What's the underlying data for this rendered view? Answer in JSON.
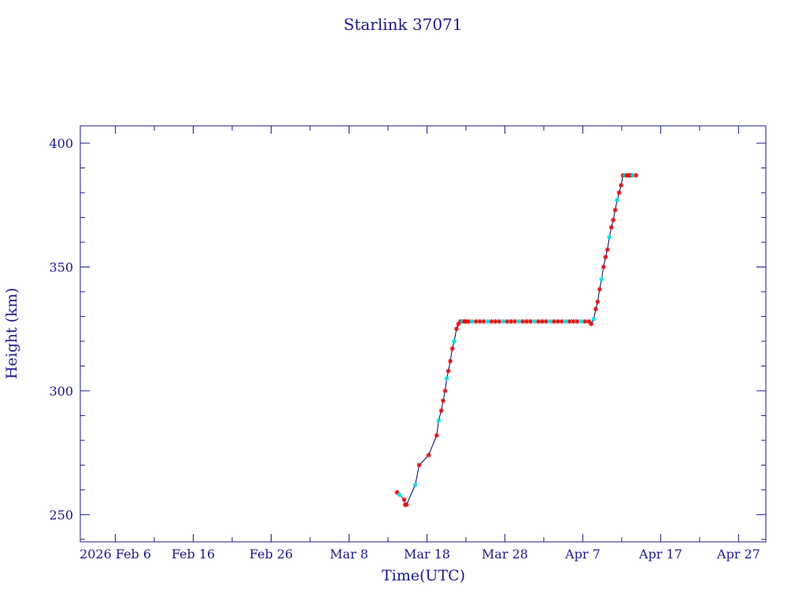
{
  "chart_data": {
    "type": "line",
    "title": "Starlink 37071",
    "xlabel": "Time(UTC)",
    "ylabel": "Height (km)",
    "x_ticks": [
      {
        "date": "2026-02-06",
        "label": "2026 Feb 6"
      },
      {
        "date": "2026-02-16",
        "label": "Feb 16"
      },
      {
        "date": "2026-02-26",
        "label": "Feb 26"
      },
      {
        "date": "2026-03-08",
        "label": "Mar  8"
      },
      {
        "date": "2026-03-18",
        "label": "Mar 18"
      },
      {
        "date": "2026-03-28",
        "label": "Mar 28"
      },
      {
        "date": "2026-04-07",
        "label": "Apr  7"
      },
      {
        "date": "2026-04-17",
        "label": "Apr 17"
      },
      {
        "date": "2026-04-27",
        "label": "Apr 27"
      }
    ],
    "y_ticks": [
      250,
      300,
      350,
      400
    ],
    "xlim": [
      "2026-02-01T12:00",
      "2026-04-30T12:00"
    ],
    "ylim": [
      239,
      407
    ],
    "grid": false,
    "colors": {
      "axis": "#1a1a8c",
      "line": "#000066",
      "marker_primary": "#e01010",
      "marker_secondary": "#00e0e0"
    },
    "series": [
      {
        "x": [
          "2026-03-14T04:00",
          "2026-03-14T12:00",
          "2026-03-15T02:00",
          "2026-03-15T05:00",
          "2026-03-15T09:00",
          "2026-03-16T12:00",
          "2026-03-17T00:00",
          "2026-03-18T05:00",
          "2026-03-19T06:00",
          "2026-03-19T12:00",
          "2026-03-19T20:00",
          "2026-03-20T02:00",
          "2026-03-20T08:00",
          "2026-03-20T13:00",
          "2026-03-20T18:00",
          "2026-03-21T00:00",
          "2026-03-21T06:00",
          "2026-03-21T12:00",
          "2026-03-21T19:00",
          "2026-03-22T01:00",
          "2026-03-22T07:00",
          "2026-03-22T13:00",
          "2026-03-22T19:00",
          "2026-03-23T01:00",
          "2026-03-23T09:00",
          "2026-03-23T19:00",
          "2026-03-24T07:00",
          "2026-03-24T19:00",
          "2026-03-25T07:00",
          "2026-03-25T19:00",
          "2026-03-26T07:00",
          "2026-03-26T19:00",
          "2026-03-27T07:00",
          "2026-03-27T19:00",
          "2026-03-28T07:00",
          "2026-03-28T19:00",
          "2026-03-29T07:00",
          "2026-03-29T19:00",
          "2026-03-30T07:00",
          "2026-03-30T19:00",
          "2026-03-31T07:00",
          "2026-03-31T19:00",
          "2026-04-01T07:00",
          "2026-04-01T19:00",
          "2026-04-02T07:00",
          "2026-04-02T19:00",
          "2026-04-03T07:00",
          "2026-04-03T19:00",
          "2026-04-04T07:00",
          "2026-04-04T19:00",
          "2026-04-05T07:00",
          "2026-04-05T19:00",
          "2026-04-06T07:00",
          "2026-04-06T19:00",
          "2026-04-07T07:00",
          "2026-04-07T19:00",
          "2026-04-08T02:00",
          "2026-04-08T10:00",
          "2026-04-08T16:00",
          "2026-04-08T22:00",
          "2026-04-09T04:00",
          "2026-04-09T10:00",
          "2026-04-09T16:00",
          "2026-04-09T22:00",
          "2026-04-10T04:00",
          "2026-04-10T10:00",
          "2026-04-10T16:00",
          "2026-04-10T22:00",
          "2026-04-11T04:00",
          "2026-04-11T10:00",
          "2026-04-11T16:00",
          "2026-04-11T22:00",
          "2026-04-12T04:00",
          "2026-04-12T10:00",
          "2026-04-12T16:00",
          "2026-04-12T22:00",
          "2026-04-13T04:00",
          "2026-04-13T10:00",
          "2026-04-13T20:00"
        ],
        "y": [
          259,
          258,
          256,
          254,
          254,
          262,
          270,
          274,
          282,
          288,
          292,
          296,
          300,
          305,
          308,
          312,
          317,
          320,
          325,
          327,
          328,
          328,
          328,
          328,
          328,
          328,
          328,
          328,
          328,
          328,
          328,
          328,
          328,
          328,
          328,
          328,
          328,
          328,
          328,
          328,
          328,
          328,
          328,
          328,
          328,
          328,
          328,
          328,
          328,
          328,
          328,
          328,
          328,
          328,
          328,
          328,
          327,
          329,
          333,
          336,
          341,
          345,
          350,
          354,
          357,
          362,
          366,
          369,
          373,
          377,
          380,
          383,
          387,
          387,
          387,
          387,
          387,
          387,
          387
        ]
      }
    ]
  }
}
